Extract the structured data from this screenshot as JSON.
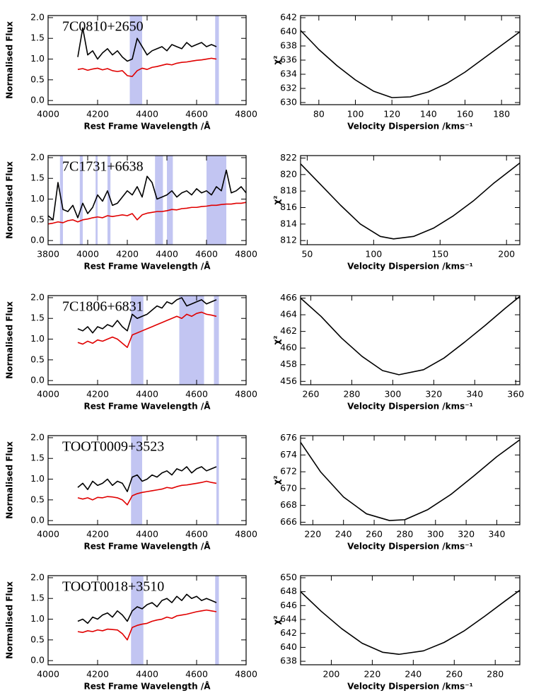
{
  "chart_data": [
    {
      "type": "line",
      "annotation": "7C0810+2650",
      "xlabel": "Rest Frame Wavelength /Å",
      "ylabel": "Normalised Flux",
      "xlim": [
        4000,
        4800
      ],
      "xticks": [
        4000,
        4200,
        4400,
        4600,
        4800
      ],
      "ylim": [
        -0.1,
        2.05
      ],
      "yticks": [
        {
          "value": 0,
          "label": "0.0"
        },
        0.5,
        {
          "value": 1,
          "label": "1.0"
        },
        1.5,
        {
          "value": 2,
          "label": "2.0"
        }
      ],
      "shade_color": "#c2c5f2",
      "shaded_regions": [
        [
          4330,
          4380
        ],
        [
          4675,
          4690
        ]
      ],
      "x": [
        4120,
        4140,
        4160,
        4180,
        4200,
        4220,
        4240,
        4260,
        4280,
        4300,
        4320,
        4340,
        4360,
        4380,
        4400,
        4420,
        4440,
        4460,
        4480,
        4500,
        4520,
        4540,
        4560,
        4580,
        4600,
        4620,
        4640,
        4660,
        4680
      ],
      "series": [
        {
          "color": "#000000",
          "values": [
            1.05,
            1.75,
            1.1,
            1.2,
            1.0,
            1.15,
            1.25,
            1.1,
            1.2,
            1.05,
            0.95,
            1.0,
            1.5,
            1.3,
            1.1,
            1.2,
            1.25,
            1.3,
            1.2,
            1.35,
            1.3,
            1.25,
            1.4,
            1.3,
            1.35,
            1.4,
            1.3,
            1.35,
            1.3
          ]
        },
        {
          "color": "#e00000",
          "values": [
            0.75,
            0.77,
            0.73,
            0.76,
            0.78,
            0.74,
            0.77,
            0.72,
            0.7,
            0.72,
            0.6,
            0.58,
            0.72,
            0.78,
            0.75,
            0.8,
            0.82,
            0.85,
            0.88,
            0.86,
            0.9,
            0.92,
            0.93,
            0.95,
            0.97,
            0.98,
            1.0,
            1.02,
            1.0
          ]
        }
      ]
    },
    {
      "type": "line",
      "xlabel": "Velocity Dispersion /kms⁻¹",
      "ylabel": "χ²",
      "xlim": [
        70,
        190
      ],
      "xticks": [
        80,
        100,
        120,
        140,
        160,
        180
      ],
      "ylim": [
        629.7,
        642.3
      ],
      "yticks": [
        630,
        632,
        634,
        636,
        638,
        640,
        642
      ],
      "x": [
        70,
        80,
        90,
        100,
        110,
        120,
        130,
        140,
        150,
        160,
        170,
        180,
        190
      ],
      "series": [
        {
          "color": "#000000",
          "values": [
            640.2,
            637.5,
            635.2,
            633.2,
            631.6,
            630.7,
            630.8,
            631.5,
            632.7,
            634.3,
            636.2,
            638.1,
            640.0
          ]
        }
      ]
    },
    {
      "type": "line",
      "annotation": "7C1731+6638",
      "xlabel": "Rest Frame Wavelength /Å",
      "ylabel": "Normalised Flux",
      "xlim": [
        3800,
        4800
      ],
      "xticks": [
        3800,
        4000,
        4200,
        4400,
        4600,
        4800
      ],
      "ylim": [
        -0.1,
        2.05
      ],
      "yticks": [
        {
          "value": 0,
          "label": "0.0"
        },
        0.5,
        {
          "value": 1,
          "label": "1.0"
        },
        1.5,
        {
          "value": 2,
          "label": "2.0"
        }
      ],
      "shade_color": "#c2c5f2",
      "shaded_regions": [
        [
          3860,
          3875
        ],
        [
          3960,
          3975
        ],
        [
          4040,
          4050
        ],
        [
          4100,
          4115
        ],
        [
          4340,
          4380
        ],
        [
          4400,
          4430
        ],
        [
          4600,
          4700
        ]
      ],
      "x": [
        3800,
        3825,
        3850,
        3875,
        3900,
        3925,
        3950,
        3975,
        4000,
        4025,
        4050,
        4075,
        4100,
        4125,
        4150,
        4175,
        4200,
        4225,
        4250,
        4275,
        4300,
        4325,
        4350,
        4375,
        4400,
        4425,
        4450,
        4475,
        4500,
        4525,
        4550,
        4575,
        4600,
        4625,
        4650,
        4675,
        4700,
        4725,
        4750,
        4775,
        4800
      ],
      "series": [
        {
          "color": "#000000",
          "values": [
            0.6,
            0.5,
            1.4,
            0.75,
            0.7,
            0.85,
            0.55,
            0.9,
            0.65,
            0.8,
            1.1,
            0.95,
            1.2,
            0.85,
            0.9,
            1.05,
            1.2,
            1.1,
            1.3,
            1.05,
            1.55,
            1.4,
            1.0,
            1.05,
            1.1,
            1.2,
            1.05,
            1.15,
            1.2,
            1.1,
            1.25,
            1.15,
            1.2,
            1.1,
            1.3,
            1.2,
            1.7,
            1.15,
            1.2,
            1.3,
            1.15
          ]
        },
        {
          "color": "#e00000",
          "values": [
            0.4,
            0.42,
            0.45,
            0.43,
            0.48,
            0.5,
            0.45,
            0.5,
            0.52,
            0.55,
            0.57,
            0.55,
            0.6,
            0.58,
            0.6,
            0.62,
            0.6,
            0.65,
            0.5,
            0.62,
            0.66,
            0.68,
            0.7,
            0.7,
            0.72,
            0.75,
            0.74,
            0.77,
            0.78,
            0.8,
            0.8,
            0.82,
            0.83,
            0.85,
            0.85,
            0.87,
            0.88,
            0.88,
            0.9,
            0.9,
            0.92
          ]
        }
      ]
    },
    {
      "type": "line",
      "xlabel": "Velocity Dispersion /kms⁻¹",
      "ylabel": "χ²",
      "xlim": [
        45,
        210
      ],
      "xticks": [
        50,
        100,
        150,
        200
      ],
      "ylim": [
        811.5,
        822.3
      ],
      "yticks": [
        812,
        814,
        816,
        818,
        820,
        822
      ],
      "x": [
        45,
        60,
        75,
        90,
        105,
        115,
        130,
        145,
        160,
        175,
        190,
        210
      ],
      "series": [
        {
          "color": "#000000",
          "values": [
            821.3,
            818.8,
            816.3,
            814.0,
            812.5,
            812.2,
            812.5,
            813.5,
            815.0,
            816.8,
            818.9,
            821.4
          ]
        }
      ]
    },
    {
      "type": "line",
      "annotation": "7C1806+6831",
      "xlabel": "Rest Frame Wavelength /Å",
      "ylabel": "Normalised Flux",
      "xlim": [
        4000,
        4800
      ],
      "xticks": [
        4000,
        4200,
        4400,
        4600,
        4800
      ],
      "ylim": [
        -0.1,
        2.05
      ],
      "yticks": [
        {
          "value": 0,
          "label": "0.0"
        },
        0.5,
        {
          "value": 1,
          "label": "1.0"
        },
        1.5,
        {
          "value": 2,
          "label": "2.0"
        }
      ],
      "shade_color": "#c2c5f2",
      "shaded_regions": [
        [
          4335,
          4385
        ],
        [
          4530,
          4630
        ],
        [
          4670,
          4690
        ]
      ],
      "x": [
        4120,
        4140,
        4160,
        4180,
        4200,
        4220,
        4240,
        4260,
        4280,
        4300,
        4320,
        4340,
        4360,
        4380,
        4400,
        4420,
        4440,
        4460,
        4480,
        4500,
        4520,
        4540,
        4560,
        4580,
        4600,
        4620,
        4640,
        4660,
        4680
      ],
      "series": [
        {
          "color": "#000000",
          "values": [
            1.25,
            1.2,
            1.3,
            1.15,
            1.3,
            1.25,
            1.35,
            1.3,
            1.45,
            1.3,
            1.2,
            1.6,
            1.5,
            1.55,
            1.6,
            1.7,
            1.8,
            1.75,
            1.9,
            1.85,
            1.95,
            2.0,
            1.8,
            1.85,
            1.9,
            1.95,
            1.85,
            1.9,
            1.95
          ]
        },
        {
          "color": "#e00000",
          "values": [
            0.92,
            0.88,
            0.95,
            0.9,
            0.98,
            0.95,
            1.0,
            1.05,
            1.0,
            0.9,
            0.8,
            1.1,
            1.15,
            1.2,
            1.25,
            1.3,
            1.35,
            1.4,
            1.45,
            1.5,
            1.55,
            1.5,
            1.6,
            1.55,
            1.62,
            1.65,
            1.6,
            1.58,
            1.55
          ]
        }
      ]
    },
    {
      "type": "line",
      "xlabel": "Velocity Dispersion /kms⁻¹",
      "ylabel": "χ²",
      "xlim": [
        255,
        362
      ],
      "xticks": [
        260,
        280,
        300,
        320,
        340,
        360
      ],
      "ylim": [
        455.6,
        466.3
      ],
      "yticks": [
        456,
        458,
        460,
        462,
        464,
        466
      ],
      "x": [
        255,
        265,
        275,
        285,
        295,
        303,
        315,
        325,
        335,
        345,
        355,
        362
      ],
      "series": [
        {
          "color": "#000000",
          "values": [
            466.0,
            463.8,
            461.2,
            459.0,
            457.3,
            456.8,
            457.4,
            458.8,
            460.7,
            462.7,
            464.8,
            466.2
          ]
        }
      ]
    },
    {
      "type": "line",
      "annotation": "TOOT0009+3523",
      "xlabel": "Rest Frame Wavelength /Å",
      "ylabel": "Normalised Flux",
      "xlim": [
        4000,
        4800
      ],
      "xticks": [
        4000,
        4200,
        4400,
        4600,
        4800
      ],
      "ylim": [
        -0.1,
        2.05
      ],
      "yticks": [
        {
          "value": 0,
          "label": "0.0"
        },
        0.5,
        {
          "value": 1,
          "label": "1.0"
        },
        1.5,
        {
          "value": 2,
          "label": "2.0"
        }
      ],
      "shade_color": "#c2c5f2",
      "shaded_regions": [
        [
          4335,
          4380
        ],
        [
          4680,
          4690
        ]
      ],
      "x": [
        4120,
        4140,
        4160,
        4180,
        4200,
        4220,
        4240,
        4260,
        4280,
        4300,
        4320,
        4340,
        4360,
        4380,
        4400,
        4420,
        4440,
        4460,
        4480,
        4500,
        4520,
        4540,
        4560,
        4580,
        4600,
        4620,
        4640,
        4660,
        4680
      ],
      "series": [
        {
          "color": "#000000",
          "values": [
            0.8,
            0.9,
            0.75,
            0.95,
            0.85,
            0.9,
            1.0,
            0.85,
            0.95,
            0.9,
            0.7,
            1.05,
            1.1,
            0.95,
            1.0,
            1.1,
            1.05,
            1.15,
            1.2,
            1.1,
            1.25,
            1.2,
            1.3,
            1.15,
            1.25,
            1.3,
            1.2,
            1.25,
            1.3
          ]
        },
        {
          "color": "#e00000",
          "values": [
            0.55,
            0.52,
            0.55,
            0.5,
            0.56,
            0.55,
            0.58,
            0.57,
            0.55,
            0.5,
            0.38,
            0.6,
            0.65,
            0.68,
            0.7,
            0.72,
            0.74,
            0.76,
            0.8,
            0.78,
            0.82,
            0.85,
            0.86,
            0.88,
            0.9,
            0.92,
            0.95,
            0.92,
            0.9
          ]
        }
      ]
    },
    {
      "type": "line",
      "xlabel": "Velocity Dispersion /kms⁻¹",
      "ylabel": "χ²",
      "xlim": [
        212,
        355
      ],
      "xticks": [
        220,
        240,
        260,
        280,
        300,
        320,
        340
      ],
      "ylim": [
        665.7,
        676.3
      ],
      "yticks": [
        666,
        668,
        670,
        672,
        674,
        676
      ],
      "x": [
        212,
        225,
        240,
        255,
        270,
        280,
        295,
        310,
        325,
        340,
        355
      ],
      "series": [
        {
          "color": "#000000",
          "values": [
            675.5,
            672.0,
            669.0,
            667.0,
            666.2,
            666.3,
            667.5,
            669.3,
            671.5,
            673.8,
            675.8
          ]
        }
      ]
    },
    {
      "type": "line",
      "annotation": "TOOT0018+3510",
      "xlabel": "Rest Frame Wavelength /Å",
      "ylabel": "Normalised Flux",
      "xlim": [
        4000,
        4800
      ],
      "xticks": [
        4000,
        4200,
        4400,
        4600,
        4800
      ],
      "ylim": [
        -0.1,
        2.05
      ],
      "yticks": [
        {
          "value": 0,
          "label": "0.0"
        },
        0.5,
        {
          "value": 1,
          "label": "1.0"
        },
        1.5,
        {
          "value": 2,
          "label": "2.0"
        }
      ],
      "shade_color": "#c2c5f2",
      "shaded_regions": [
        [
          4335,
          4385
        ],
        [
          4675,
          4690
        ]
      ],
      "x": [
        4120,
        4140,
        4160,
        4180,
        4200,
        4220,
        4240,
        4260,
        4280,
        4300,
        4320,
        4340,
        4360,
        4380,
        4400,
        4420,
        4440,
        4460,
        4480,
        4500,
        4520,
        4540,
        4560,
        4580,
        4600,
        4620,
        4640,
        4660,
        4680
      ],
      "series": [
        {
          "color": "#000000",
          "values": [
            0.95,
            1.0,
            0.9,
            1.05,
            1.0,
            1.1,
            1.15,
            1.05,
            1.2,
            1.1,
            0.95,
            1.2,
            1.3,
            1.25,
            1.35,
            1.4,
            1.3,
            1.45,
            1.5,
            1.4,
            1.55,
            1.45,
            1.6,
            1.5,
            1.55,
            1.45,
            1.5,
            1.45,
            1.4
          ]
        },
        {
          "color": "#e00000",
          "values": [
            0.7,
            0.68,
            0.72,
            0.7,
            0.74,
            0.72,
            0.76,
            0.75,
            0.74,
            0.65,
            0.5,
            0.8,
            0.85,
            0.88,
            0.9,
            0.95,
            0.98,
            1.0,
            1.05,
            1.02,
            1.08,
            1.1,
            1.12,
            1.15,
            1.18,
            1.2,
            1.22,
            1.2,
            1.18
          ]
        }
      ]
    },
    {
      "type": "line",
      "xlabel": "Velocity Dispersion /kms⁻¹",
      "ylabel": "χ²",
      "xlim": [
        185,
        292
      ],
      "xticks": [
        200,
        220,
        240,
        260,
        280
      ],
      "ylim": [
        637.5,
        650.3
      ],
      "yticks": [
        638,
        640,
        642,
        644,
        646,
        648,
        650
      ],
      "x": [
        185,
        195,
        205,
        215,
        225,
        233,
        245,
        255,
        265,
        275,
        285,
        292
      ],
      "series": [
        {
          "color": "#000000",
          "values": [
            648.0,
            645.2,
            642.7,
            640.6,
            639.3,
            639.0,
            639.5,
            640.7,
            642.4,
            644.5,
            646.7,
            648.2
          ]
        }
      ]
    }
  ]
}
